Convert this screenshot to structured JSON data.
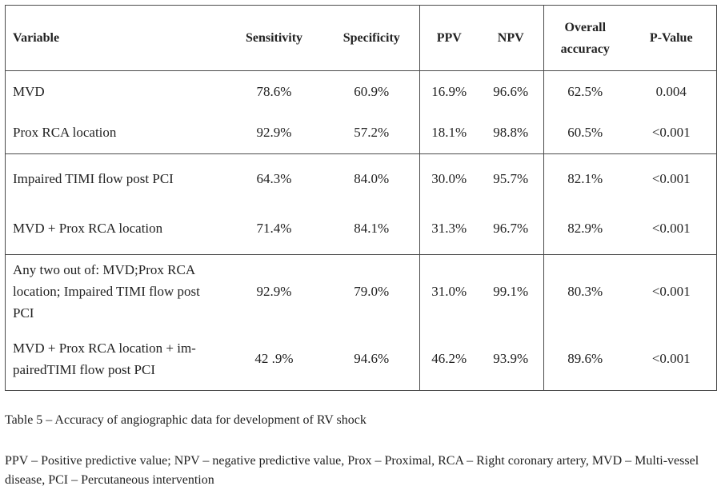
{
  "table": {
    "headers": {
      "variable": "Variable",
      "sensitivity": "Sensitivity",
      "specificity": "Specificity",
      "ppv": "PPV",
      "npv": "NPV",
      "overall_accuracy_line1": "Overall",
      "overall_accuracy_line2": "accuracy",
      "p_value": "P-Value"
    },
    "rows": [
      {
        "variable": "MVD",
        "sensitivity": "78.6%",
        "specificity": "60.9%",
        "ppv": "16.9%",
        "npv": "96.6%",
        "overall_accuracy": "62.5%",
        "p_value": "0.004"
      },
      {
        "variable": "Prox RCA location",
        "sensitivity": "92.9%",
        "specificity": "57.2%",
        "ppv": "18.1%",
        "npv": "98.8%",
        "overall_accuracy": "60.5%",
        "p_value": "<0.001"
      },
      {
        "variable": "Impaired TIMI flow post PCI",
        "sensitivity": "64.3%",
        "specificity": "84.0%",
        "ppv": "30.0%",
        "npv": "95.7%",
        "overall_accuracy": "82.1%",
        "p_value": "<0.001"
      },
      {
        "variable": "MVD + Prox RCA location",
        "sensitivity": "71.4%",
        "specificity": "84.1%",
        "ppv": "31.3%",
        "npv": "96.7%",
        "overall_accuracy": "82.9%",
        "p_value": "<0.001"
      },
      {
        "variable_line1": "Any two out of: MVD;Prox RCA",
        "variable_line2": "location; Impaired TIMI flow post",
        "variable_line3": "PCI",
        "sensitivity": "92.9%",
        "specificity": "79.0%",
        "ppv": "31.0%",
        "npv": "99.1%",
        "overall_accuracy": "80.3%",
        "p_value": "<0.001"
      },
      {
        "variable_line1": "MVD + Prox RCA location + im-",
        "variable_line2": "pairedTIMI flow post PCI",
        "sensitivity": "42 .9%",
        "specificity": "94.6%",
        "ppv": "46.2%",
        "npv": "93.9%",
        "overall_accuracy": "89.6%",
        "p_value": "<0.001"
      }
    ]
  },
  "caption": "Table 5 – Accuracy of angiographic data for development of RV shock",
  "footnote": "PPV – Positive predictive value; NPV – negative predictive value, Prox – Proximal, RCA – Right coronary artery, MVD – Multi-vessel disease, PCI – Percutaneous intervention"
}
